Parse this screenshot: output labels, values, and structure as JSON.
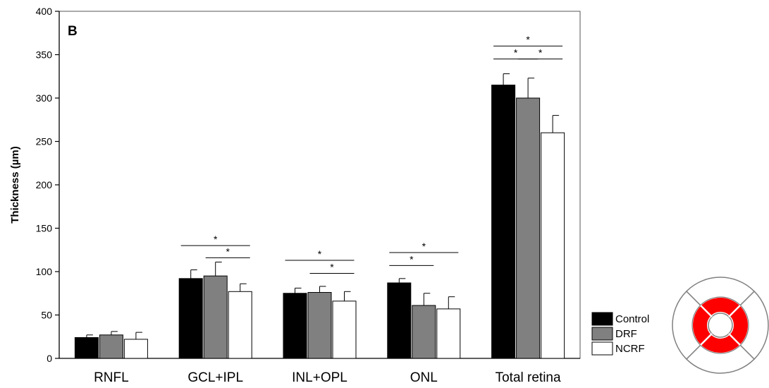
{
  "chart_data": {
    "type": "bar",
    "panel_label": "B",
    "ylabel": "Thickness (µm)",
    "ylim": [
      0,
      400
    ],
    "yticks": [
      0,
      50,
      100,
      150,
      200,
      250,
      300,
      350,
      400
    ],
    "categories": [
      "RNFL",
      "GCL+IPL",
      "INL+OPL",
      "ONL",
      "Total retina"
    ],
    "series": [
      {
        "name": "Control",
        "color": "#000000",
        "values": [
          24,
          92,
          75,
          87,
          315
        ],
        "errors": [
          3,
          10,
          6,
          5,
          13
        ]
      },
      {
        "name": "DRF",
        "color": "#808080",
        "values": [
          27,
          95,
          76,
          61,
          300
        ],
        "errors": [
          4,
          16,
          7,
          14,
          23
        ]
      },
      {
        "name": "NCRF",
        "color": "#ffffff",
        "values": [
          22,
          77,
          66,
          57,
          260
        ],
        "errors": [
          8,
          9,
          11,
          14,
          20
        ]
      }
    ],
    "significance": [
      {
        "category": 1,
        "from": 0,
        "to": 2,
        "y": 130,
        "label": "*"
      },
      {
        "category": 1,
        "from": 1,
        "to": 2,
        "y": 116,
        "label": "*"
      },
      {
        "category": 2,
        "from": 0,
        "to": 2,
        "y": 113,
        "label": "*"
      },
      {
        "category": 2,
        "from": 1,
        "to": 2,
        "y": 98,
        "label": "*"
      },
      {
        "category": 3,
        "from": 0,
        "to": 1,
        "y": 107,
        "label": "*"
      },
      {
        "category": 3,
        "from": 0,
        "to": 2,
        "y": 122,
        "label": "*"
      },
      {
        "category": 4,
        "from": 0,
        "to": 2,
        "y": 360,
        "label": "*"
      },
      {
        "category": 4,
        "from": 0,
        "to": 1,
        "y": 345,
        "label": "*"
      },
      {
        "category": 4,
        "from": 1,
        "to": 2,
        "y": 345,
        "label": "*"
      }
    ],
    "legend_placement": "bottom-right",
    "grid": false
  },
  "inset": {
    "icon": "retina-sector-map-icon",
    "ring_color": "#ff0000",
    "outline_color": "#808080"
  }
}
